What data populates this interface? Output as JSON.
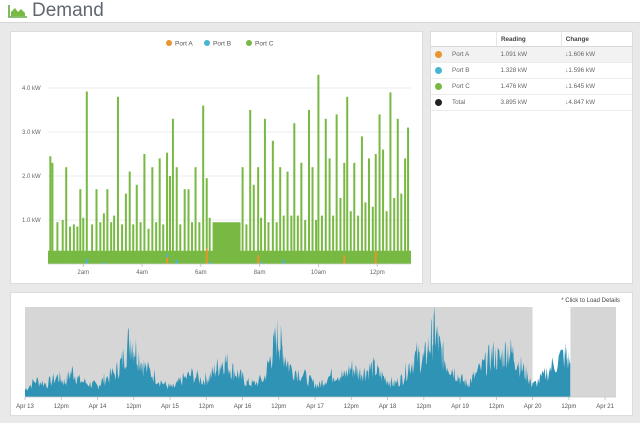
{
  "header": {
    "title": "Demand",
    "icon": "area-chart-icon"
  },
  "chart_data": [
    {
      "type": "bar",
      "name": "demand-detail",
      "legend": [
        "Port A",
        "Port B",
        "Port C"
      ],
      "colors": {
        "Port A": "#e8952b",
        "Port B": "#47b6d3",
        "Port C": "#77b943"
      },
      "ylabels": [
        "1.0 kW",
        "2.0 kW",
        "3.0 kW",
        "4.0 kW"
      ],
      "yticks": [
        1,
        2,
        3,
        4
      ],
      "ylim": [
        0,
        4.5
      ],
      "xlabels": [
        "2am",
        "4am",
        "6am",
        "8am",
        "10am",
        "12pm"
      ],
      "xtick_hours": [
        2,
        4,
        6,
        8,
        10,
        12
      ],
      "xlim_hours": [
        0.8,
        13.15
      ],
      "spikes": [
        [
          0.88,
          2.45,
          0,
          0
        ],
        [
          0.95,
          2.3,
          0,
          0
        ],
        [
          1.12,
          0.95,
          0,
          0
        ],
        [
          1.3,
          1.0,
          0,
          0
        ],
        [
          1.42,
          2.2,
          0,
          0
        ],
        [
          1.55,
          0.85,
          0,
          0
        ],
        [
          1.68,
          0.9,
          0,
          0
        ],
        [
          1.8,
          0.85,
          0,
          0
        ],
        [
          1.9,
          1.7,
          0,
          0
        ],
        [
          2.0,
          1.05,
          0,
          0
        ],
        [
          2.12,
          3.8,
          0,
          0.12
        ],
        [
          2.3,
          0.9,
          0,
          0
        ],
        [
          2.45,
          1.7,
          0,
          0
        ],
        [
          2.58,
          0.95,
          0,
          0
        ],
        [
          2.7,
          1.1,
          0,
          0.05
        ],
        [
          2.82,
          1.7,
          0,
          0
        ],
        [
          2.95,
          0.95,
          0,
          0
        ],
        [
          3.05,
          1.1,
          0,
          0
        ],
        [
          3.18,
          3.8,
          0,
          0
        ],
        [
          3.32,
          0.9,
          0,
          0
        ],
        [
          3.45,
          1.6,
          0,
          0
        ],
        [
          3.58,
          2.1,
          0,
          0
        ],
        [
          3.7,
          0.9,
          0,
          0
        ],
        [
          3.82,
          1.8,
          0,
          0
        ],
        [
          3.95,
          0.95,
          0,
          0
        ],
        [
          4.08,
          2.5,
          0,
          0
        ],
        [
          4.22,
          0.8,
          0,
          0
        ],
        [
          4.35,
          2.2,
          0,
          0
        ],
        [
          4.48,
          0.95,
          0,
          0
        ],
        [
          4.6,
          2.4,
          0,
          0
        ],
        [
          4.72,
          0.9,
          0,
          0
        ],
        [
          4.85,
          2.3,
          0.15,
          0.08
        ],
        [
          4.95,
          2.0,
          0,
          0
        ],
        [
          5.05,
          3.3,
          0,
          0
        ],
        [
          5.18,
          2.1,
          0,
          0.1
        ],
        [
          5.3,
          0.9,
          0,
          0
        ],
        [
          5.45,
          1.7,
          0,
          0
        ],
        [
          5.58,
          1.7,
          0,
          0
        ],
        [
          5.7,
          0.95,
          0,
          0
        ],
        [
          5.82,
          2.2,
          0,
          0
        ],
        [
          5.95,
          0.95,
          0,
          0
        ],
        [
          6.08,
          3.6,
          0,
          0
        ],
        [
          6.2,
          1.6,
          0.35,
          0
        ],
        [
          6.3,
          1.0,
          0,
          0.05
        ],
        [
          7.42,
          2.2,
          0,
          0
        ],
        [
          7.55,
          0.9,
          0,
          0
        ],
        [
          7.68,
          3.5,
          0,
          0
        ],
        [
          7.8,
          1.8,
          0,
          0
        ],
        [
          7.95,
          2.0,
          0.2,
          0
        ],
        [
          8.05,
          1.0,
          0,
          0.05
        ],
        [
          8.18,
          3.3,
          0,
          0
        ],
        [
          8.3,
          0.95,
          0,
          0
        ],
        [
          8.45,
          2.8,
          0,
          0
        ],
        [
          8.58,
          0.95,
          0,
          0
        ],
        [
          8.7,
          2.2,
          0,
          0
        ],
        [
          8.82,
          1.0,
          0,
          0.1
        ],
        [
          8.95,
          2.1,
          0,
          0
        ],
        [
          9.08,
          1.1,
          0,
          0
        ],
        [
          9.18,
          3.2,
          0,
          0
        ],
        [
          9.3,
          1.1,
          0,
          0
        ],
        [
          9.42,
          2.3,
          0,
          0
        ],
        [
          9.55,
          1.0,
          0,
          0
        ],
        [
          9.68,
          3.5,
          0,
          0
        ],
        [
          9.8,
          2.2,
          0,
          0
        ],
        [
          9.92,
          1.0,
          0,
          0
        ],
        [
          10.0,
          4.3,
          0,
          0
        ],
        [
          10.12,
          1.1,
          0,
          0
        ],
        [
          10.25,
          3.3,
          0,
          0
        ],
        [
          10.38,
          2.4,
          0,
          0
        ],
        [
          10.5,
          1.1,
          0,
          0
        ],
        [
          10.62,
          3.4,
          0,
          0
        ],
        [
          10.75,
          1.5,
          0,
          0
        ],
        [
          10.88,
          2.1,
          0.2,
          0
        ],
        [
          10.98,
          3.8,
          0,
          0
        ],
        [
          11.1,
          1.2,
          0,
          0
        ],
        [
          11.22,
          2.3,
          0,
          0
        ],
        [
          11.35,
          1.1,
          0,
          0
        ],
        [
          11.48,
          2.9,
          0,
          0
        ],
        [
          11.6,
          1.4,
          0,
          0
        ],
        [
          11.72,
          2.4,
          0,
          0
        ],
        [
          11.85,
          1.3,
          0,
          0
        ],
        [
          11.95,
          2.2,
          0.3,
          0
        ],
        [
          12.08,
          3.4,
          0,
          0
        ],
        [
          12.2,
          2.6,
          0,
          0
        ],
        [
          12.32,
          1.2,
          0,
          0
        ],
        [
          12.45,
          3.9,
          0,
          0
        ],
        [
          12.58,
          1.5,
          0,
          0
        ],
        [
          12.7,
          3.3,
          0,
          0
        ],
        [
          12.82,
          1.6,
          0,
          0
        ],
        [
          12.95,
          2.4,
          0,
          0
        ],
        [
          13.05,
          3.1,
          0,
          0
        ]
      ]
    },
    {
      "type": "area",
      "name": "demand-overview",
      "xlabels": [
        "Apr 13",
        "12pm",
        "Apr 14",
        "12pm",
        "Apr 15",
        "12pm",
        "Apr 16",
        "12pm",
        "Apr 17",
        "12pm",
        "Apr 18",
        "12pm",
        "Apr 19",
        "12pm",
        "Apr 20",
        "12pm",
        "Apr 21"
      ],
      "xlim_days": [
        0,
        8.15
      ],
      "selection_days": [
        7.0,
        7.52
      ],
      "ylim": [
        0,
        4.5
      ],
      "points": [
        [
          0,
          0.4
        ],
        [
          0.15,
          0.9
        ],
        [
          0.3,
          0.7
        ],
        [
          0.45,
          1.1
        ],
        [
          0.55,
          0.8
        ],
        [
          0.65,
          1.4
        ],
        [
          0.75,
          0.9
        ],
        [
          0.9,
          0.7
        ],
        [
          1.0,
          0.6
        ],
        [
          1.1,
          1.0
        ],
        [
          1.25,
          1.3
        ],
        [
          1.35,
          2.0
        ],
        [
          1.45,
          3.2
        ],
        [
          1.55,
          2.4
        ],
        [
          1.65,
          1.6
        ],
        [
          1.8,
          1.1
        ],
        [
          1.95,
          0.6
        ],
        [
          2.05,
          0.5
        ],
        [
          2.15,
          0.9
        ],
        [
          2.3,
          1.2
        ],
        [
          2.45,
          0.9
        ],
        [
          2.55,
          1.1
        ],
        [
          2.65,
          1.6
        ],
        [
          2.75,
          2.0
        ],
        [
          2.85,
          1.5
        ],
        [
          2.95,
          1.2
        ],
        [
          3.05,
          0.8
        ],
        [
          3.15,
          0.7
        ],
        [
          3.3,
          1.0
        ],
        [
          3.4,
          2.3
        ],
        [
          3.48,
          3.3
        ],
        [
          3.55,
          2.6
        ],
        [
          3.65,
          1.6
        ],
        [
          3.8,
          1.3
        ],
        [
          3.95,
          0.8
        ],
        [
          4.05,
          0.6
        ],
        [
          4.15,
          1.0
        ],
        [
          4.3,
          1.3
        ],
        [
          4.4,
          1.1
        ],
        [
          4.5,
          1.6
        ],
        [
          4.6,
          1.3
        ],
        [
          4.7,
          1.4
        ],
        [
          4.8,
          1.6
        ],
        [
          4.9,
          1.2
        ],
        [
          5.0,
          0.9
        ],
        [
          5.1,
          0.7
        ],
        [
          5.2,
          1.0
        ],
        [
          5.3,
          1.7
        ],
        [
          5.4,
          2.2
        ],
        [
          5.5,
          2.0
        ],
        [
          5.58,
          2.8
        ],
        [
          5.65,
          3.6
        ],
        [
          5.72,
          2.6
        ],
        [
          5.8,
          1.9
        ],
        [
          5.9,
          1.5
        ],
        [
          6.0,
          1.0
        ],
        [
          6.1,
          0.7
        ],
        [
          6.2,
          1.1
        ],
        [
          6.35,
          1.8
        ],
        [
          6.45,
          2.3
        ],
        [
          6.55,
          2.0
        ],
        [
          6.65,
          2.6
        ],
        [
          6.75,
          2.2
        ],
        [
          6.85,
          1.6
        ],
        [
          6.95,
          1.0
        ],
        [
          7.0,
          0.6
        ],
        [
          7.15,
          1.1
        ],
        [
          7.3,
          1.8
        ],
        [
          7.45,
          2.3
        ],
        [
          7.52,
          1.7
        ]
      ]
    }
  ],
  "overview": {
    "note": "* Click to Load Details"
  },
  "readings": {
    "headers": {
      "reading": "Reading",
      "change": "Change"
    },
    "rows": [
      {
        "name": "Port A",
        "color": "#e8952b",
        "reading": "1.091 kW",
        "change": "↓1.606 kW"
      },
      {
        "name": "Port B",
        "color": "#47b6d3",
        "reading": "1.328 kW",
        "change": "↓1.596 kW"
      },
      {
        "name": "Port C",
        "color": "#77b943",
        "reading": "1.476 kW",
        "change": "↓1.645 kW"
      },
      {
        "name": "Total",
        "color": "#222222",
        "reading": "3.895 kW",
        "change": "↓4.847 kW"
      }
    ]
  }
}
